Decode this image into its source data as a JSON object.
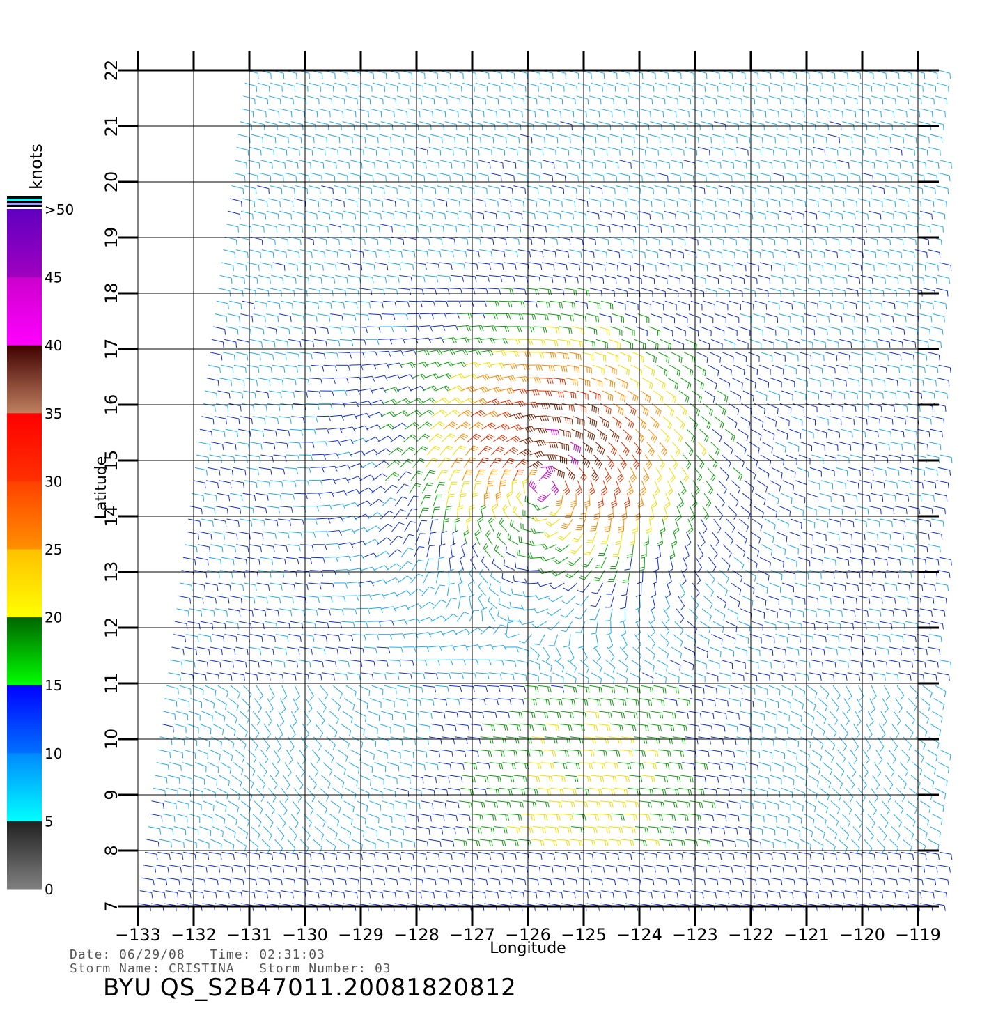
{
  "plot": {
    "xlabel": "Longitude",
    "ylabel": "Latitude",
    "x_ticks": [
      -133,
      -132,
      -131,
      -130,
      -129,
      -128,
      -127,
      -126,
      -125,
      -124,
      -123,
      -122,
      -121,
      -120,
      -119
    ],
    "y_ticks": [
      7,
      8,
      9,
      10,
      11,
      12,
      13,
      14,
      15,
      16,
      17,
      18,
      19,
      20,
      21,
      22
    ]
  },
  "colorbar": {
    "unit_label": "knots",
    "tick_labels": [
      "0",
      "5",
      "10",
      "15",
      "20",
      "25",
      "30",
      "35",
      "40",
      "45",
      ">50"
    ],
    "segments": [
      {
        "range": [
          0,
          5
        ],
        "from": "#808080",
        "to": "#202020"
      },
      {
        "range": [
          5,
          10
        ],
        "from": "#00ffff",
        "to": "#0088ff"
      },
      {
        "range": [
          10,
          15
        ],
        "from": "#0070ff",
        "to": "#0000ff"
      },
      {
        "range": [
          15,
          20
        ],
        "from": "#00ff00",
        "to": "#006400"
      },
      {
        "range": [
          20,
          25
        ],
        "from": "#ffff00",
        "to": "#ffc000"
      },
      {
        "range": [
          25,
          30
        ],
        "from": "#ff9000",
        "to": "#ff4000"
      },
      {
        "range": [
          30,
          35
        ],
        "from": "#ff3000",
        "to": "#ff0000"
      },
      {
        "range": [
          35,
          40
        ],
        "from": "#c08060",
        "to": "#400000"
      },
      {
        "range": [
          40,
          45
        ],
        "from": "#ff00ff",
        "to": "#cc00cc"
      },
      {
        "range": [
          45,
          50
        ],
        "from": "#a000c0",
        "to": "#6000c0"
      }
    ]
  },
  "storm": {
    "center_lon": -125.7,
    "center_lat": 14.6
  },
  "info": {
    "line1": "Date: 06/29/08   Time: 02:31:03",
    "line2": "Storm Name: CRISTINA   Storm Number: 03",
    "title": "BYU QS_S2B47011.20081820812"
  }
}
